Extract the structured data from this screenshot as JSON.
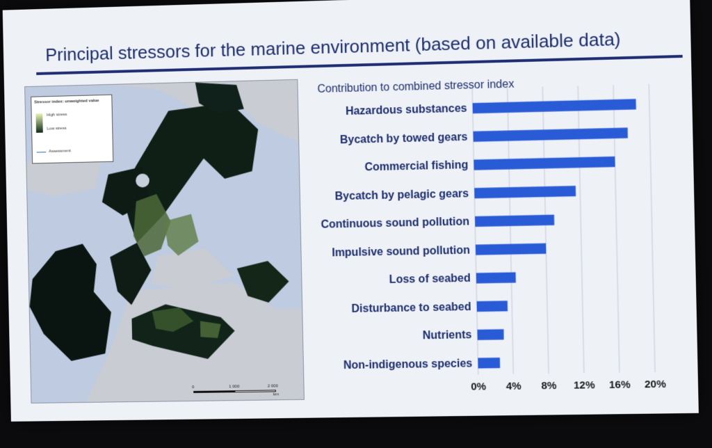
{
  "slide": {
    "title": "Principal stressors for the marine environment (based on available data)"
  },
  "map": {
    "legend_title": "Stressor index: unweighted value",
    "legend_high": "High stress",
    "legend_low": "Low stress",
    "legend_assessment": "Assessment",
    "scale_0": "0",
    "scale_1": "1 000",
    "scale_2": "2 000",
    "scale_unit": "km"
  },
  "chart_data": {
    "type": "bar",
    "orientation": "horizontal",
    "title": "",
    "ylabel": "Contribution to combined stressor index",
    "xlabel": "",
    "categories": [
      "Hazardous substances",
      "Bycatch by towed gears",
      "Commercial fishing",
      "Bycatch by pelagic gears",
      "Continuous sound pollution",
      "Impulsive sound pollution",
      "Loss of seabed",
      "Disturbance to seabed",
      "Nutrients",
      "Non-indigenous species"
    ],
    "values": [
      18.5,
      17.5,
      16.0,
      11.5,
      9.0,
      8.0,
      4.5,
      3.5,
      3.0,
      2.5
    ],
    "xlim": [
      0,
      20
    ],
    "ticks": [
      "0%",
      "4%",
      "8%",
      "12%",
      "16%",
      "20%"
    ],
    "tick_values": [
      0,
      4,
      8,
      12,
      16,
      20
    ],
    "grid": true,
    "bar_color": "#2a5bd7"
  }
}
